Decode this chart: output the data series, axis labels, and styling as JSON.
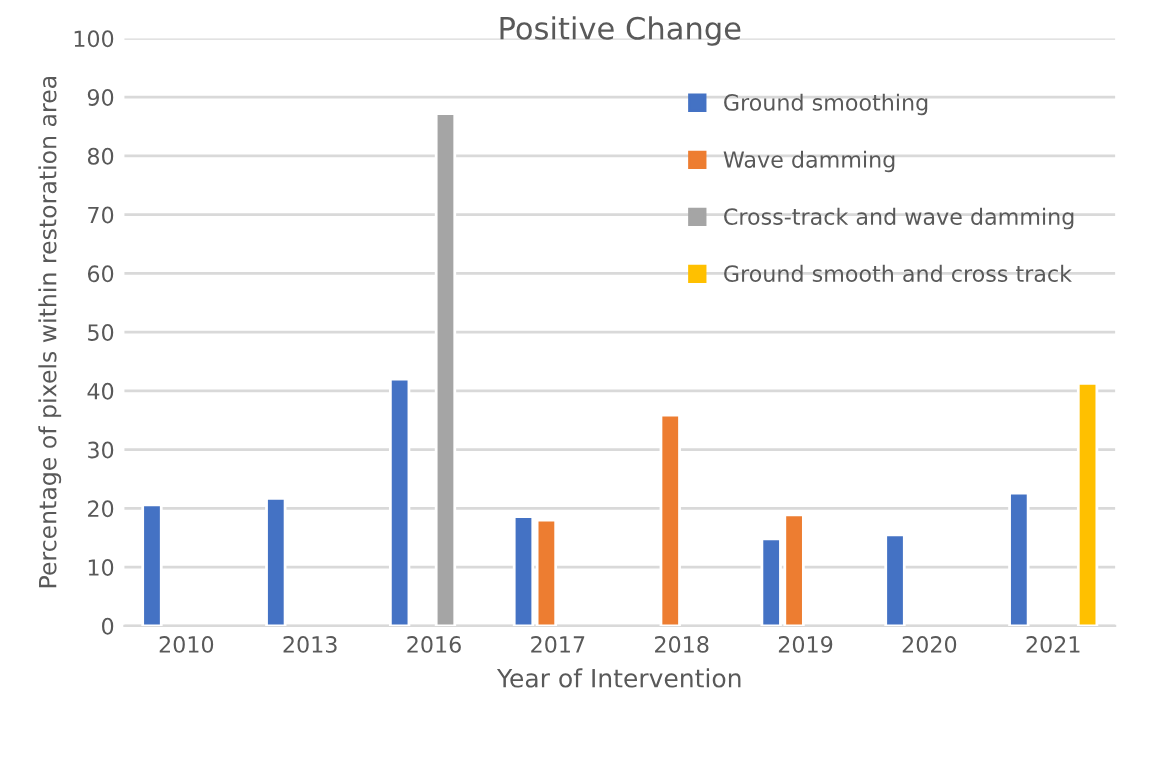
{
  "chart_data": {
    "type": "bar",
    "title": "Positive Change",
    "xlabel": "Year of Intervention",
    "ylabel": "Percentage of pixels within restoration area",
    "categories": [
      "2010",
      "2013",
      "2016",
      "2017",
      "2018",
      "2019",
      "2020",
      "2021"
    ],
    "series": [
      {
        "name": "Ground smoothing",
        "color": "#4472c4",
        "values": [
          20.6,
          21.7,
          42.0,
          18.6,
          null,
          14.8,
          15.5,
          22.6
        ]
      },
      {
        "name": "Wave damming",
        "color": "#ed7d31",
        "values": [
          null,
          null,
          null,
          18.0,
          35.9,
          18.9,
          null,
          null
        ]
      },
      {
        "name": "Cross-track and wave damming",
        "color": "#a5a5a5",
        "values": [
          null,
          null,
          87.2,
          null,
          null,
          null,
          null,
          null
        ]
      },
      {
        "name": "Ground smooth and cross track",
        "color": "#ffc000",
        "values": [
          null,
          null,
          null,
          null,
          null,
          null,
          null,
          41.3
        ]
      }
    ],
    "ylim": [
      0,
      100
    ],
    "yticks": [
      0,
      10,
      20,
      30,
      40,
      50,
      60,
      70,
      80,
      90,
      100
    ],
    "grid": "y",
    "legend": "top right"
  }
}
